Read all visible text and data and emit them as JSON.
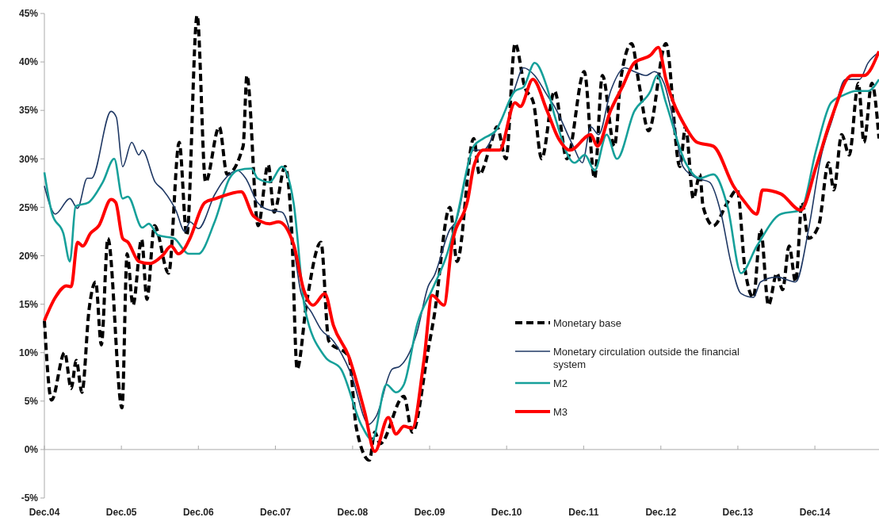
{
  "chart_data": {
    "type": "line",
    "xlim": [
      "2004-12-01",
      "2015-10-01"
    ],
    "xticks": [
      {
        "value": "2004-12-01",
        "label": "Dec.04"
      },
      {
        "value": "2005-12-01",
        "label": "Dec.05"
      },
      {
        "value": "2006-12-01",
        "label": "Dec.06"
      },
      {
        "value": "2007-12-01",
        "label": "Dec.07"
      },
      {
        "value": "2008-12-01",
        "label": "Dec.08"
      },
      {
        "value": "2009-12-01",
        "label": "Dec.09"
      },
      {
        "value": "2010-12-01",
        "label": "Dec.10"
      },
      {
        "value": "2011-12-01",
        "label": "Dec.11"
      },
      {
        "value": "2012-12-01",
        "label": "Dec.12"
      },
      {
        "value": "2013-12-01",
        "label": "Dec.13"
      },
      {
        "value": "2014-12-01",
        "label": "Dec.14"
      }
    ],
    "ylim": [
      -5,
      45
    ],
    "yticks": [
      {
        "value": -5,
        "label": "-5%"
      },
      {
        "value": 0,
        "label": "0%"
      },
      {
        "value": 5,
        "label": "5%"
      },
      {
        "value": 10,
        "label": "10%"
      },
      {
        "value": 15,
        "label": "15%"
      },
      {
        "value": 20,
        "label": "20%"
      },
      {
        "value": 25,
        "label": "25%"
      },
      {
        "value": 30,
        "label": "30%"
      },
      {
        "value": 35,
        "label": "35%"
      },
      {
        "value": 40,
        "label": "40%"
      },
      {
        "value": 45,
        "label": "45%"
      }
    ],
    "legend": "bottom right",
    "series": [
      {
        "name": "Monetary base",
        "color": "#000000",
        "line_style": "dashed",
        "x": [
          "2004-12-01",
          "2005-01-04",
          "2005-03-07",
          "2005-04-07",
          "2005-05-01",
          "2005-05-28",
          "2005-07-01",
          "2005-08-01",
          "2005-08-28",
          "2005-09-28",
          "2005-12-04",
          "2005-12-28",
          "2006-01-25",
          "2006-03-07",
          "2006-04-01",
          "2006-05-07",
          "2006-07-13",
          "2006-09-01",
          "2006-10-07",
          "2006-11-25",
          "2007-01-04",
          "2007-03-10",
          "2007-04-16",
          "2007-07-01",
          "2007-07-19",
          "2007-09-10",
          "2007-10-28",
          "2007-11-25",
          "2008-01-16",
          "2008-02-16",
          "2008-03-13",
          "2008-04-28",
          "2008-07-04",
          "2008-08-10",
          "2008-11-13",
          "2008-12-19",
          "2009-02-19",
          "2009-03-16",
          "2009-04-10",
          "2009-08-01",
          "2009-09-10",
          "2009-11-25",
          "2009-12-22",
          "2010-03-07",
          "2010-04-10",
          "2010-06-28",
          "2010-07-25",
          "2010-09-19",
          "2010-10-16",
          "2010-11-28",
          "2011-01-10",
          "2011-02-25",
          "2011-04-07",
          "2011-05-16",
          "2011-07-16",
          "2011-09-13",
          "2011-12-04",
          "2012-01-22",
          "2012-02-28",
          "2012-04-25",
          "2012-05-25",
          "2012-07-16",
          "2012-08-19",
          "2012-10-04",
          "2012-12-25",
          "2013-03-01",
          "2013-03-28",
          "2013-05-04",
          "2013-06-04",
          "2013-06-19",
          "2013-08-07",
          "2013-10-13",
          "2013-11-28",
          "2014-01-04",
          "2014-02-13",
          "2014-03-19",
          "2014-04-25",
          "2014-06-04",
          "2014-07-01",
          "2014-08-01",
          "2014-09-01",
          "2014-10-01",
          "2014-11-01",
          "2014-12-19",
          "2015-02-04",
          "2015-03-01",
          "2015-04-07",
          "2015-05-13",
          "2015-06-25",
          "2015-07-22",
          "2015-08-28",
          "2015-10-01"
        ],
        "values": [
          13.3,
          5.1,
          10,
          6.3,
          9.2,
          5.9,
          14.5,
          17.3,
          10.8,
          21.8,
          4.3,
          20.2,
          14.9,
          21.7,
          15.5,
          23.1,
          18.2,
          31.7,
          22.1,
          44.8,
          27.6,
          33.3,
          28.4,
          31.3,
          38.6,
          23.1,
          29.4,
          24.5,
          29.2,
          22.7,
          8.3,
          15.3,
          21.4,
          11.2,
          9.6,
          2.2,
          -1.1,
          1.8,
          0.6,
          5.5,
          1.8,
          10.4,
          13.7,
          25,
          19.4,
          32.1,
          28.4,
          31.7,
          33.3,
          30,
          41.9,
          37.4,
          35.8,
          30,
          37,
          30,
          39,
          28,
          38.6,
          31.3,
          38.2,
          41.9,
          37.8,
          32.9,
          41.9,
          29.2,
          33.3,
          25.9,
          28.4,
          25.1,
          23.1,
          25.5,
          26.8,
          18.6,
          15.7,
          22.7,
          14.9,
          18.2,
          16.5,
          21,
          17.3,
          25.5,
          21.8,
          23.1,
          29.6,
          26.8,
          32.5,
          30.4,
          37.8,
          31.7,
          37.8,
          32.1
        ]
      },
      {
        "name": "Monetary circulation outside the financial system",
        "color": "#1f3864",
        "line_style": "solid",
        "x": [
          "2004-12-01",
          "2005-01-22",
          "2005-04-01",
          "2005-05-07",
          "2005-06-22",
          "2005-07-13",
          "2005-10-13",
          "2005-11-07",
          "2005-12-07",
          "2006-01-19",
          "2006-02-22",
          "2006-03-10",
          "2006-05-10",
          "2006-06-16",
          "2006-08-16",
          "2006-09-28",
          "2006-10-22",
          "2006-12-01",
          "2007-02-16",
          "2007-03-28",
          "2007-06-04",
          "2007-07-13",
          "2007-09-07",
          "2007-11-04",
          "2008-01-01",
          "2008-03-01",
          "2008-04-01",
          "2008-05-22",
          "2008-07-04",
          "2008-09-01",
          "2008-11-22",
          "2009-02-16",
          "2009-03-22",
          "2009-06-07",
          "2009-07-13",
          "2009-10-01",
          "2009-11-25",
          "2009-12-22",
          "2010-03-07",
          "2010-04-04",
          "2010-06-28",
          "2010-08-13",
          "2010-10-10",
          "2011-01-04",
          "2011-02-19",
          "2011-04-13",
          "2011-06-10",
          "2011-07-16",
          "2011-10-13",
          "2011-11-25",
          "2012-01-04",
          "2012-02-10",
          "2012-04-07",
          "2012-06-13",
          "2012-07-28",
          "2012-09-22",
          "2012-11-01",
          "2012-12-16",
          "2013-02-01",
          "2013-03-16",
          "2013-05-22",
          "2013-07-19",
          "2013-09-13",
          "2013-10-28",
          "2013-12-16",
          "2014-02-13",
          "2014-03-19",
          "2014-06-04",
          "2014-09-01",
          "2014-11-01",
          "2014-12-28",
          "2015-02-22",
          "2015-04-25",
          "2015-07-01",
          "2015-08-10",
          "2015-10-01"
        ],
        "values": [
          27.2,
          24.3,
          25.9,
          24.9,
          28,
          28,
          34.9,
          34.3,
          29.2,
          31.7,
          30.4,
          30.9,
          27.6,
          26.8,
          24.7,
          22.5,
          23.5,
          22.8,
          26.3,
          27.7,
          28.8,
          28,
          25.5,
          24.7,
          24.5,
          20.2,
          16.1,
          14.1,
          12.4,
          11.2,
          7.9,
          2.6,
          3.4,
          8.3,
          8.6,
          12,
          16.9,
          17.9,
          22.7,
          23.5,
          30.9,
          30.9,
          32.9,
          37,
          39.4,
          38.6,
          36.6,
          35.4,
          31.3,
          29.6,
          33.3,
          32.5,
          37,
          39.4,
          39,
          38.6,
          39,
          37.8,
          33.7,
          29.2,
          28,
          27.6,
          24.3,
          19.4,
          16.1,
          15.7,
          17.3,
          17.8,
          17.3,
          22.7,
          30,
          34.1,
          38.2,
          38.2,
          39.9,
          41
        ]
      },
      {
        "name": "M2",
        "color": "#16a09a",
        "line_style": "solid",
        "x": [
          "2004-12-01",
          "2005-01-07",
          "2005-03-01",
          "2005-04-01",
          "2005-04-28",
          "2005-06-28",
          "2005-09-04",
          "2005-10-28",
          "2005-12-07",
          "2006-01-01",
          "2006-03-10",
          "2006-04-10",
          "2006-05-25",
          "2006-08-07",
          "2006-10-16",
          "2006-12-01",
          "2007-02-16",
          "2007-04-28",
          "2007-06-04",
          "2007-08-10",
          "2007-09-07",
          "2007-11-04",
          "2008-01-01",
          "2008-02-25",
          "2008-04-19",
          "2008-07-22",
          "2008-10-07",
          "2009-01-10",
          "2009-03-04",
          "2009-05-10",
          "2009-06-25",
          "2009-08-01",
          "2009-10-04",
          "2009-12-13",
          "2010-02-25",
          "2010-04-04",
          "2010-06-28",
          "2010-08-13",
          "2010-10-10",
          "2011-01-10",
          "2011-02-19",
          "2011-04-13",
          "2011-06-10",
          "2011-07-16",
          "2011-10-19",
          "2011-12-07",
          "2012-01-22",
          "2012-03-19",
          "2012-05-07",
          "2012-07-28",
          "2012-10-13",
          "2012-11-13",
          "2012-12-25",
          "2013-03-28",
          "2013-06-04",
          "2013-08-07",
          "2013-10-13",
          "2013-12-16",
          "2014-03-01",
          "2014-06-22",
          "2014-09-25",
          "2014-12-07",
          "2015-02-16",
          "2015-04-19",
          "2015-06-13",
          "2015-08-10",
          "2015-10-01"
        ],
        "values": [
          28.6,
          24.3,
          22.3,
          19.4,
          25.1,
          25.5,
          27.6,
          30,
          25.9,
          26.1,
          22.9,
          23.3,
          22.1,
          21.8,
          20.2,
          20.2,
          23.5,
          28,
          28.8,
          29,
          28,
          27.6,
          29.2,
          25.5,
          14.5,
          9.6,
          8.3,
          2.6,
          1,
          6.7,
          5.9,
          6.7,
          13,
          16.5,
          20.4,
          23.5,
          31.3,
          32.1,
          32.9,
          37,
          37.4,
          39.9,
          37.4,
          34.5,
          29.6,
          30.4,
          28.8,
          32.5,
          30,
          34.9,
          37,
          38.6,
          35.8,
          29.6,
          28,
          28.4,
          25.1,
          18.2,
          21,
          24.3,
          24.7,
          30.9,
          35.8,
          36.6,
          37,
          37,
          38.2
        ]
      },
      {
        "name": "M3",
        "color": "#ff0000",
        "line_style": "solid",
        "x": [
          "2004-12-01",
          "2005-01-22",
          "2005-03-16",
          "2005-04-07",
          "2005-05-07",
          "2005-06-01",
          "2005-07-07",
          "2005-08-16",
          "2005-10-13",
          "2005-11-04",
          "2005-12-07",
          "2006-01-01",
          "2006-02-22",
          "2006-04-16",
          "2006-06-13",
          "2006-07-25",
          "2006-08-28",
          "2006-09-22",
          "2006-10-22",
          "2007-01-01",
          "2007-02-22",
          "2007-06-22",
          "2007-08-19",
          "2007-11-04",
          "2007-12-16",
          "2008-02-25",
          "2008-04-13",
          "2008-05-28",
          "2008-07-22",
          "2008-09-01",
          "2008-11-13",
          "2009-01-28",
          "2009-03-16",
          "2009-05-19",
          "2009-06-25",
          "2009-08-01",
          "2009-09-10",
          "2009-11-04",
          "2009-12-13",
          "2010-02-07",
          "2010-03-16",
          "2010-06-01",
          "2010-06-28",
          "2010-08-13",
          "2010-10-28",
          "2011-01-10",
          "2011-02-04",
          "2011-04-04",
          "2011-06-10",
          "2011-08-04",
          "2011-09-28",
          "2012-01-04",
          "2012-02-04",
          "2012-04-07",
          "2012-06-01",
          "2012-07-28",
          "2012-10-13",
          "2012-11-19",
          "2012-12-25",
          "2013-03-28",
          "2013-05-22",
          "2013-08-07",
          "2013-11-10",
          "2014-01-04",
          "2014-03-01",
          "2014-03-28",
          "2014-06-22",
          "2014-09-25",
          "2014-12-07",
          "2015-02-16",
          "2015-05-25",
          "2015-07-22",
          "2015-10-01"
        ],
        "values": [
          13.3,
          15.7,
          16.9,
          16.8,
          21.4,
          21,
          22.3,
          23.1,
          25.8,
          25.5,
          21.8,
          21.4,
          19.4,
          19.2,
          20,
          21,
          20.2,
          20.6,
          21.8,
          25.5,
          25.9,
          26.6,
          24.1,
          23.3,
          23.5,
          21.2,
          16.5,
          14.9,
          16.1,
          12.8,
          9.6,
          3.8,
          -0.2,
          3.3,
          1.6,
          2.4,
          2.2,
          9.2,
          15.9,
          14.9,
          21,
          25.9,
          29.2,
          30.9,
          30.9,
          35.8,
          35.4,
          38.2,
          35,
          32.1,
          30.9,
          32.5,
          31.3,
          35,
          37.4,
          39.9,
          40.7,
          41.5,
          38.2,
          33.3,
          31.7,
          31.3,
          27.2,
          25.5,
          24.3,
          26.8,
          26.4,
          24.7,
          29.2,
          34.1,
          38.6,
          38.6,
          41.1
        ]
      }
    ]
  }
}
